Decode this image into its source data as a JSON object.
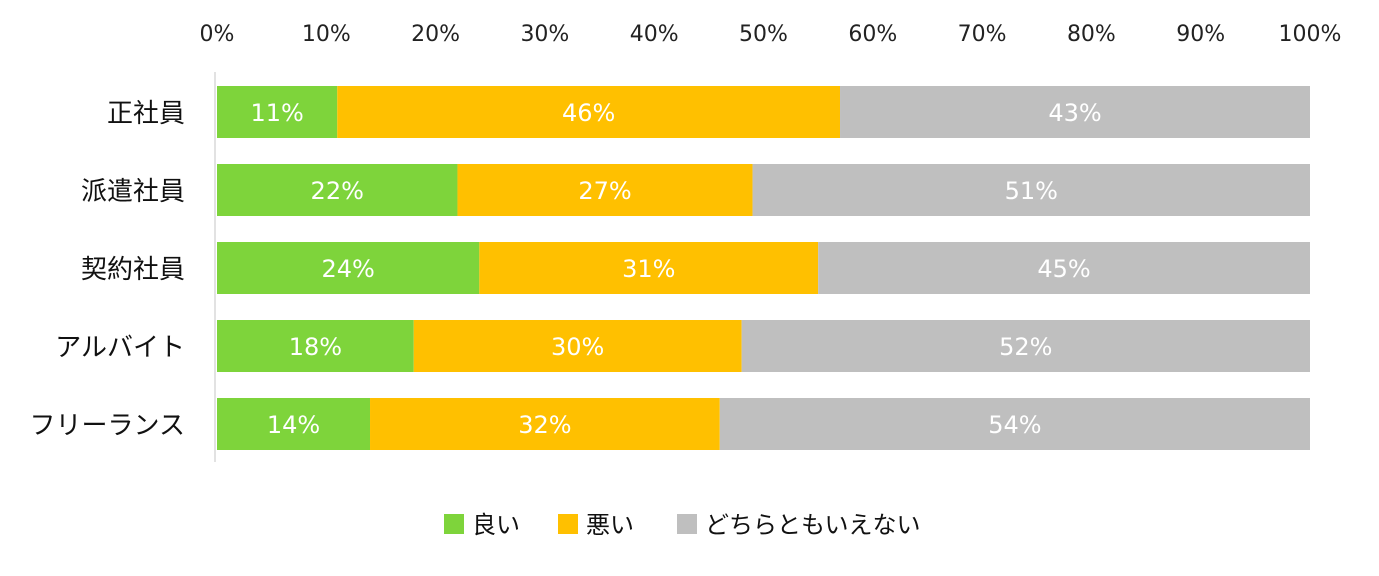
{
  "chart_data": {
    "type": "bar",
    "orientation": "horizontal",
    "stacked": "percent",
    "categories": [
      "正社員",
      "派遣社員",
      "契約社員",
      "アルバイト",
      "フリーランス"
    ],
    "series": [
      {
        "name": "良い",
        "color": "#7ed43b",
        "values": [
          11,
          22,
          24,
          18,
          14
        ]
      },
      {
        "name": "悪い",
        "color": "#ffc000",
        "values": [
          46,
          27,
          31,
          30,
          32
        ]
      },
      {
        "name": "どちらともいえない",
        "color": "#bfbfbf",
        "values": [
          43,
          51,
          45,
          52,
          54
        ]
      }
    ],
    "data_labels": [
      [
        "11%",
        "46%",
        "43%"
      ],
      [
        "22%",
        "27%",
        "51%"
      ],
      [
        "24%",
        "31%",
        "45%"
      ],
      [
        "18%",
        "30%",
        "52%"
      ],
      [
        "14%",
        "32%",
        "54%"
      ]
    ],
    "x_ticks": [
      "0%",
      "10%",
      "20%",
      "30%",
      "40%",
      "50%",
      "60%",
      "70%",
      "80%",
      "90%",
      "100%"
    ],
    "xlim": [
      0,
      100
    ],
    "axis_position": "top",
    "grid": false,
    "legend_position": "bottom",
    "title": "",
    "xlabel": "",
    "ylabel": ""
  }
}
